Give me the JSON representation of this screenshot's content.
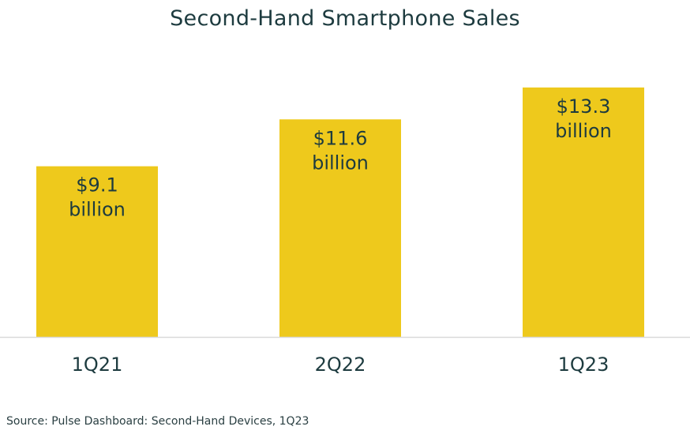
{
  "chart_data": {
    "type": "bar",
    "title": "Second-Hand Smartphone Sales",
    "categories": [
      "1Q21",
      "2Q22",
      "1Q23"
    ],
    "values": [
      9.1,
      11.6,
      13.3
    ],
    "unit": "billion USD",
    "data_labels": [
      {
        "amount": "$9.1",
        "unit": "billion"
      },
      {
        "amount": "$11.6",
        "unit": "billion"
      },
      {
        "amount": "$13.3",
        "unit": "billion"
      }
    ],
    "xlabel": "",
    "ylabel": "",
    "ylim": [
      0,
      14
    ],
    "grid": false,
    "legend": "none",
    "bar_color": "#eec91c",
    "text_color": "#1d3b3f",
    "baseline_color": "#d9d9d9"
  },
  "source": "Source: Pulse Dashboard: Second-Hand Devices, 1Q23"
}
